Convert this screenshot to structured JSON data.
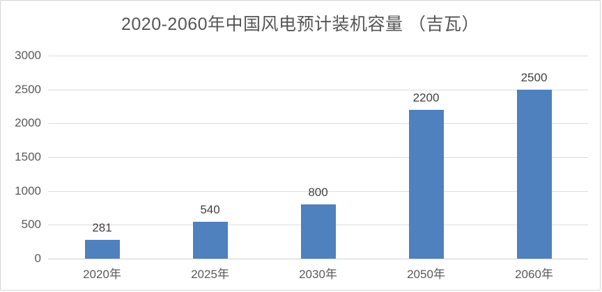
{
  "title": "2020-2060年中国风电预计装机容量 （吉瓦）",
  "chart_data": {
    "type": "bar",
    "title": "2020-2060年中国风电预计装机容量 （吉瓦）",
    "categories": [
      "2020年",
      "2025年",
      "2030年",
      "2050年",
      "2060年"
    ],
    "values": [
      281,
      540,
      800,
      2200,
      2500
    ],
    "data_labels": [
      "281",
      "540",
      "800",
      "2200",
      "2500"
    ],
    "xlabel": "",
    "ylabel": "",
    "ylim": [
      0,
      3000
    ],
    "yticks": [
      0,
      500,
      1000,
      1500,
      2000,
      2500,
      3000
    ],
    "grid": true,
    "legend": false
  },
  "colors": {
    "bar": "#4e81bd",
    "gridline": "#dcdcdc",
    "zero_line": "#cfcfcf",
    "title_text": "#555555",
    "axis_text": "#595959",
    "data_label_text": "#404040",
    "background": "#ffffff"
  }
}
